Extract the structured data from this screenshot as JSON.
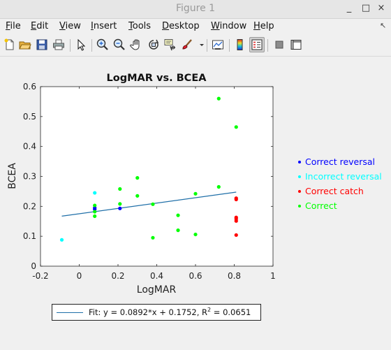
{
  "window": {
    "title": "Figure 1",
    "controls": [
      "_",
      "□",
      "×"
    ]
  },
  "menu": [
    {
      "label": "File",
      "u": "F",
      "rest": "ile"
    },
    {
      "label": "Edit",
      "u": "E",
      "rest": "dit"
    },
    {
      "label": "View",
      "u": "V",
      "rest": "iew"
    },
    {
      "label": "Insert",
      "u": "I",
      "rest": "nsert"
    },
    {
      "label": "Tools",
      "u": "T",
      "rest": "ools"
    },
    {
      "label": "Desktop",
      "u": "D",
      "rest": "esktop"
    },
    {
      "label": "Window",
      "u": "W",
      "rest": "indow"
    },
    {
      "label": "Help",
      "u": "H",
      "rest": "elp"
    }
  ],
  "toolbar_icons": [
    "new-figure-icon",
    "open-file-icon",
    "save-icon",
    "print-icon",
    "pointer-icon",
    "zoom-in-icon",
    "zoom-out-icon",
    "pan-hand-icon",
    "rotate-3d-icon",
    "data-cursor-icon",
    "brush-icon",
    "dropdown-arrow-icon",
    "link-plot-icon",
    "colorbar-icon",
    "legend-icon",
    "hide-plot-tools-icon",
    "show-plot-tools-icon"
  ],
  "chart_data": {
    "type": "scatter",
    "title": "LogMAR vs. BCEA",
    "xlabel": "LogMAR",
    "ylabel": "BCEA",
    "xlim": [
      -0.2,
      1
    ],
    "ylim": [
      0,
      0.6
    ],
    "xticks": [
      -0.2,
      0,
      0.2,
      0.4,
      0.6,
      0.8,
      1
    ],
    "xtick_labels": [
      "-0.2",
      "0",
      "0.2",
      "0.4",
      "0.6",
      "0.8",
      "1"
    ],
    "yticks": [
      0,
      0.1,
      0.2,
      0.3,
      0.4,
      0.5,
      0.6
    ],
    "ytick_labels": [
      "0",
      "0.1",
      "0.2",
      "0.3",
      "0.4",
      "0.5",
      "0.6"
    ],
    "grid": false,
    "legend_position": "right-outside",
    "series": [
      {
        "name": "Correct reversal",
        "color": "#0000ff",
        "x": [
          0.08,
          0.08,
          0.21
        ],
        "y": [
          0.195,
          0.19,
          0.193
        ]
      },
      {
        "name": "Incorrect reversal",
        "color": "#00ffff",
        "x": [
          -0.09,
          0.08
        ],
        "y": [
          0.088,
          0.245
        ]
      },
      {
        "name": "Correct catch",
        "color": "#ff0000",
        "x": [
          0.81,
          0.81,
          0.81,
          0.81,
          0.81,
          0.81
        ],
        "y": [
          0.227,
          0.223,
          0.163,
          0.158,
          0.151,
          0.104
        ]
      },
      {
        "name": "Correct",
        "color": "#00ff00",
        "x": [
          0.08,
          0.08,
          0.08,
          0.21,
          0.21,
          0.3,
          0.3,
          0.38,
          0.38,
          0.51,
          0.51,
          0.6,
          0.6,
          0.72,
          0.72,
          0.81
        ],
        "y": [
          0.203,
          0.182,
          0.167,
          0.258,
          0.208,
          0.295,
          0.235,
          0.207,
          0.095,
          0.17,
          0.12,
          0.242,
          0.106,
          0.265,
          0.56,
          0.465
        ]
      }
    ],
    "fit": {
      "color": "#1f6fa8",
      "slope": 0.0892,
      "intercept": 0.1752,
      "x_range": [
        -0.09,
        0.81
      ],
      "label_prefix": "Fit: y = 0.0892*x + 0.1752, R",
      "label_sup": "2",
      "label_suffix": " = 0.0651"
    }
  }
}
